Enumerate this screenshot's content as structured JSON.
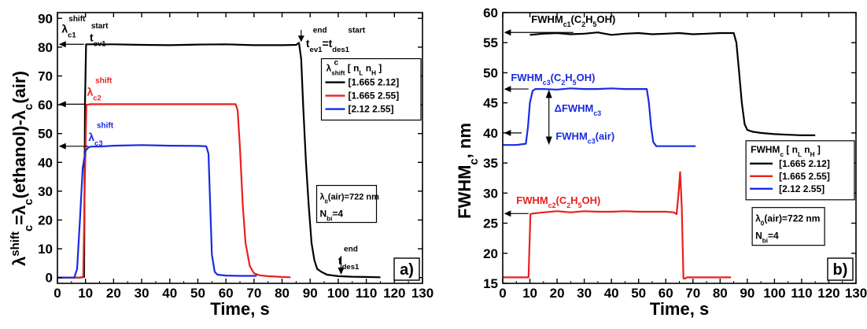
{
  "chart_data": [
    {
      "type": "line",
      "panel_label": "a)",
      "xlabel": "Time, s",
      "ylabel": "λc^shift=λc(ethanol)-λc(air)",
      "xlim": [
        0,
        130
      ],
      "ylim": [
        -2,
        92
      ],
      "xticks": [
        0,
        10,
        20,
        30,
        40,
        50,
        60,
        70,
        80,
        90,
        100,
        110,
        120,
        130
      ],
      "yticks": [
        0,
        10,
        20,
        30,
        40,
        50,
        60,
        70,
        80,
        90
      ],
      "legend": {
        "title": "λ shift c [ nL nH ]",
        "entries": [
          "[1.665 2.12]",
          "[1.665 2.55]",
          "[2.12   2.55]"
        ],
        "placement": "right"
      },
      "notes": [
        "λ0(air)=722 nm",
        "Nbi=4"
      ],
      "series": [
        {
          "name": "[1.665 2.12]",
          "color": "#000000",
          "x": [
            0,
            8,
            9.5,
            9.8,
            10.2,
            12,
            20,
            30,
            40,
            50,
            60,
            70,
            80,
            85,
            86,
            86.8,
            87.5,
            88.5,
            89.5,
            90.5,
            91.5,
            92.5,
            94,
            96,
            100,
            105,
            110,
            115
          ],
          "y": [
            0,
            0,
            0.2,
            60,
            81,
            81,
            81,
            80.8,
            80.7,
            80.9,
            81,
            80.7,
            80.7,
            80.8,
            81.5,
            76,
            60,
            40,
            25,
            12,
            6,
            3,
            2,
            1,
            0.5,
            0.3,
            0.2,
            0.1
          ]
        },
        {
          "name": "[1.665 2.55]",
          "color": "#e8211d",
          "x": [
            0,
            8,
            9.2,
            9.7,
            10.3,
            12,
            20,
            30,
            40,
            50,
            60,
            63.5,
            64.2,
            65,
            66,
            67,
            68.5,
            70,
            72,
            75,
            80,
            83
          ],
          "y": [
            0,
            0,
            0.3,
            30,
            60,
            60.2,
            60.2,
            60.2,
            60.2,
            60.2,
            60.2,
            60.2,
            58,
            45,
            25,
            12,
            4,
            1.5,
            0.8,
            0.5,
            0.2,
            0.1
          ]
        },
        {
          "name": "[2.12   2.55]",
          "color": "#1a2be0",
          "x": [
            0,
            6,
            7,
            8,
            9,
            10,
            11,
            12,
            15,
            20,
            30,
            40,
            50,
            53,
            53.8,
            54.4,
            55,
            56,
            57,
            60,
            65,
            70,
            71
          ],
          "y": [
            0,
            0,
            3,
            20,
            38,
            44,
            45.2,
            45.5,
            45.5,
            45.8,
            46,
            45.8,
            45.7,
            45.6,
            43,
            25,
            8,
            2,
            1,
            0.7,
            0.6,
            0.6,
            0.6
          ]
        }
      ],
      "annotations": [
        {
          "text": "λ",
          "sub": "c1",
          "sup": "shift",
          "color": "#000000"
        },
        {
          "text": "t",
          "sub": "ev1",
          "sup": "start",
          "color": "#000000"
        },
        {
          "text": "t",
          "sub": "ev1",
          "sup": "end",
          "suffix": "=t",
          "suffix_sub": "des1",
          "suffix_sup": "start",
          "color": "#000000"
        },
        {
          "text": "λ",
          "sub": "c2",
          "sup": "shift",
          "color": "#e8211d"
        },
        {
          "text": "λ",
          "sub": "c3",
          "sup": "shift",
          "color": "#1a2be0"
        },
        {
          "text": "t",
          "sub": "des1",
          "sup": "end",
          "color": "#000000"
        }
      ],
      "grid": false
    },
    {
      "type": "line",
      "panel_label": "b)",
      "xlabel": "Time, s",
      "ylabel": "FWHMc, nm",
      "xlim": [
        0,
        130
      ],
      "ylim": [
        15,
        60
      ],
      "xticks": [
        0,
        10,
        20,
        30,
        40,
        50,
        60,
        70,
        80,
        90,
        100,
        110,
        120,
        130
      ],
      "yticks": [
        15,
        20,
        25,
        30,
        35,
        40,
        45,
        50,
        55,
        60
      ],
      "legend": {
        "title": "FWHMc [ nL nH ]",
        "entries": [
          "[1.665 2.12]",
          "[1.665 2.55]",
          "[2.12   2.55]"
        ],
        "placement": "right"
      },
      "notes": [
        "λ0(air)=722 nm",
        "Nbi=4"
      ],
      "series": [
        {
          "name": "[1.665 2.12]",
          "color": "#000000",
          "x": [
            10,
            15,
            20,
            25,
            30,
            35,
            40,
            45,
            50,
            55,
            60,
            65,
            70,
            75,
            80,
            85,
            86,
            87,
            88,
            89,
            90,
            92,
            95,
            100,
            105,
            110,
            115
          ],
          "y": [
            56.3,
            56.5,
            56.6,
            56.4,
            56.5,
            56.7,
            56.3,
            56.5,
            56.6,
            56.4,
            56.5,
            56.6,
            56.4,
            56.5,
            56.6,
            56.6,
            55,
            50,
            45,
            41.5,
            40.5,
            40.2,
            40,
            39.8,
            39.7,
            39.6,
            39.6
          ]
        },
        {
          "name": "[1.665 2.55]",
          "color": "#e8211d",
          "x": [
            0,
            5,
            9.5,
            10.2,
            11,
            15,
            20,
            25,
            30,
            35,
            40,
            45,
            50,
            55,
            60,
            63,
            64,
            64.7,
            65.3,
            65.9,
            66.5,
            67.1,
            67.8,
            70,
            75,
            80,
            84
          ],
          "y": [
            16,
            16,
            16,
            26.5,
            26.6,
            26.8,
            27,
            26.8,
            27,
            26.9,
            26.9,
            27,
            26.9,
            26.9,
            26.9,
            26.8,
            26.5,
            30,
            33.5,
            27.5,
            15.8,
            15.8,
            16,
            16,
            16,
            16,
            16
          ]
        },
        {
          "name": "[2.12   2.55]",
          "color": "#1a2be0",
          "x": [
            0,
            5,
            8.5,
            9.3,
            10,
            11,
            12,
            15,
            20,
            25,
            30,
            35,
            40,
            45,
            50,
            53,
            53.8,
            54.6,
            55.4,
            56.5,
            58,
            62,
            66,
            70,
            71
          ],
          "y": [
            38,
            38,
            38.2,
            41,
            45,
            47,
            47.3,
            47.3,
            47.2,
            47.4,
            47.3,
            47.3,
            47.4,
            47.3,
            47.3,
            47.3,
            45,
            41,
            38.5,
            37.8,
            37.8,
            37.8,
            37.8,
            37.8,
            37.8
          ]
        }
      ],
      "annotations": [
        {
          "text": "FWHM",
          "sub": "c1",
          "suffix": "(C",
          "tail": "H",
          "tail2": "OH)",
          "s2": "2",
          "s5": "5",
          "color": "#000000"
        },
        {
          "text": "FWHM",
          "sub": "c3",
          "suffix": "(C",
          "tail": "H",
          "tail2": "OH)",
          "s2": "2",
          "s5": "5",
          "color": "#1a2be0"
        },
        {
          "text": "ΔFWHM",
          "sub": "c3",
          "color": "#1a2be0"
        },
        {
          "text": "FWHM",
          "sub": "c3",
          "suffix": "(air)",
          "color": "#1a2be0"
        },
        {
          "text": "FWHM",
          "sub": "c2",
          "suffix": "(C",
          "tail": "H",
          "tail2": "OH)",
          "s2": "2",
          "s5": "5",
          "color": "#e8211d"
        }
      ],
      "grid": false
    }
  ]
}
